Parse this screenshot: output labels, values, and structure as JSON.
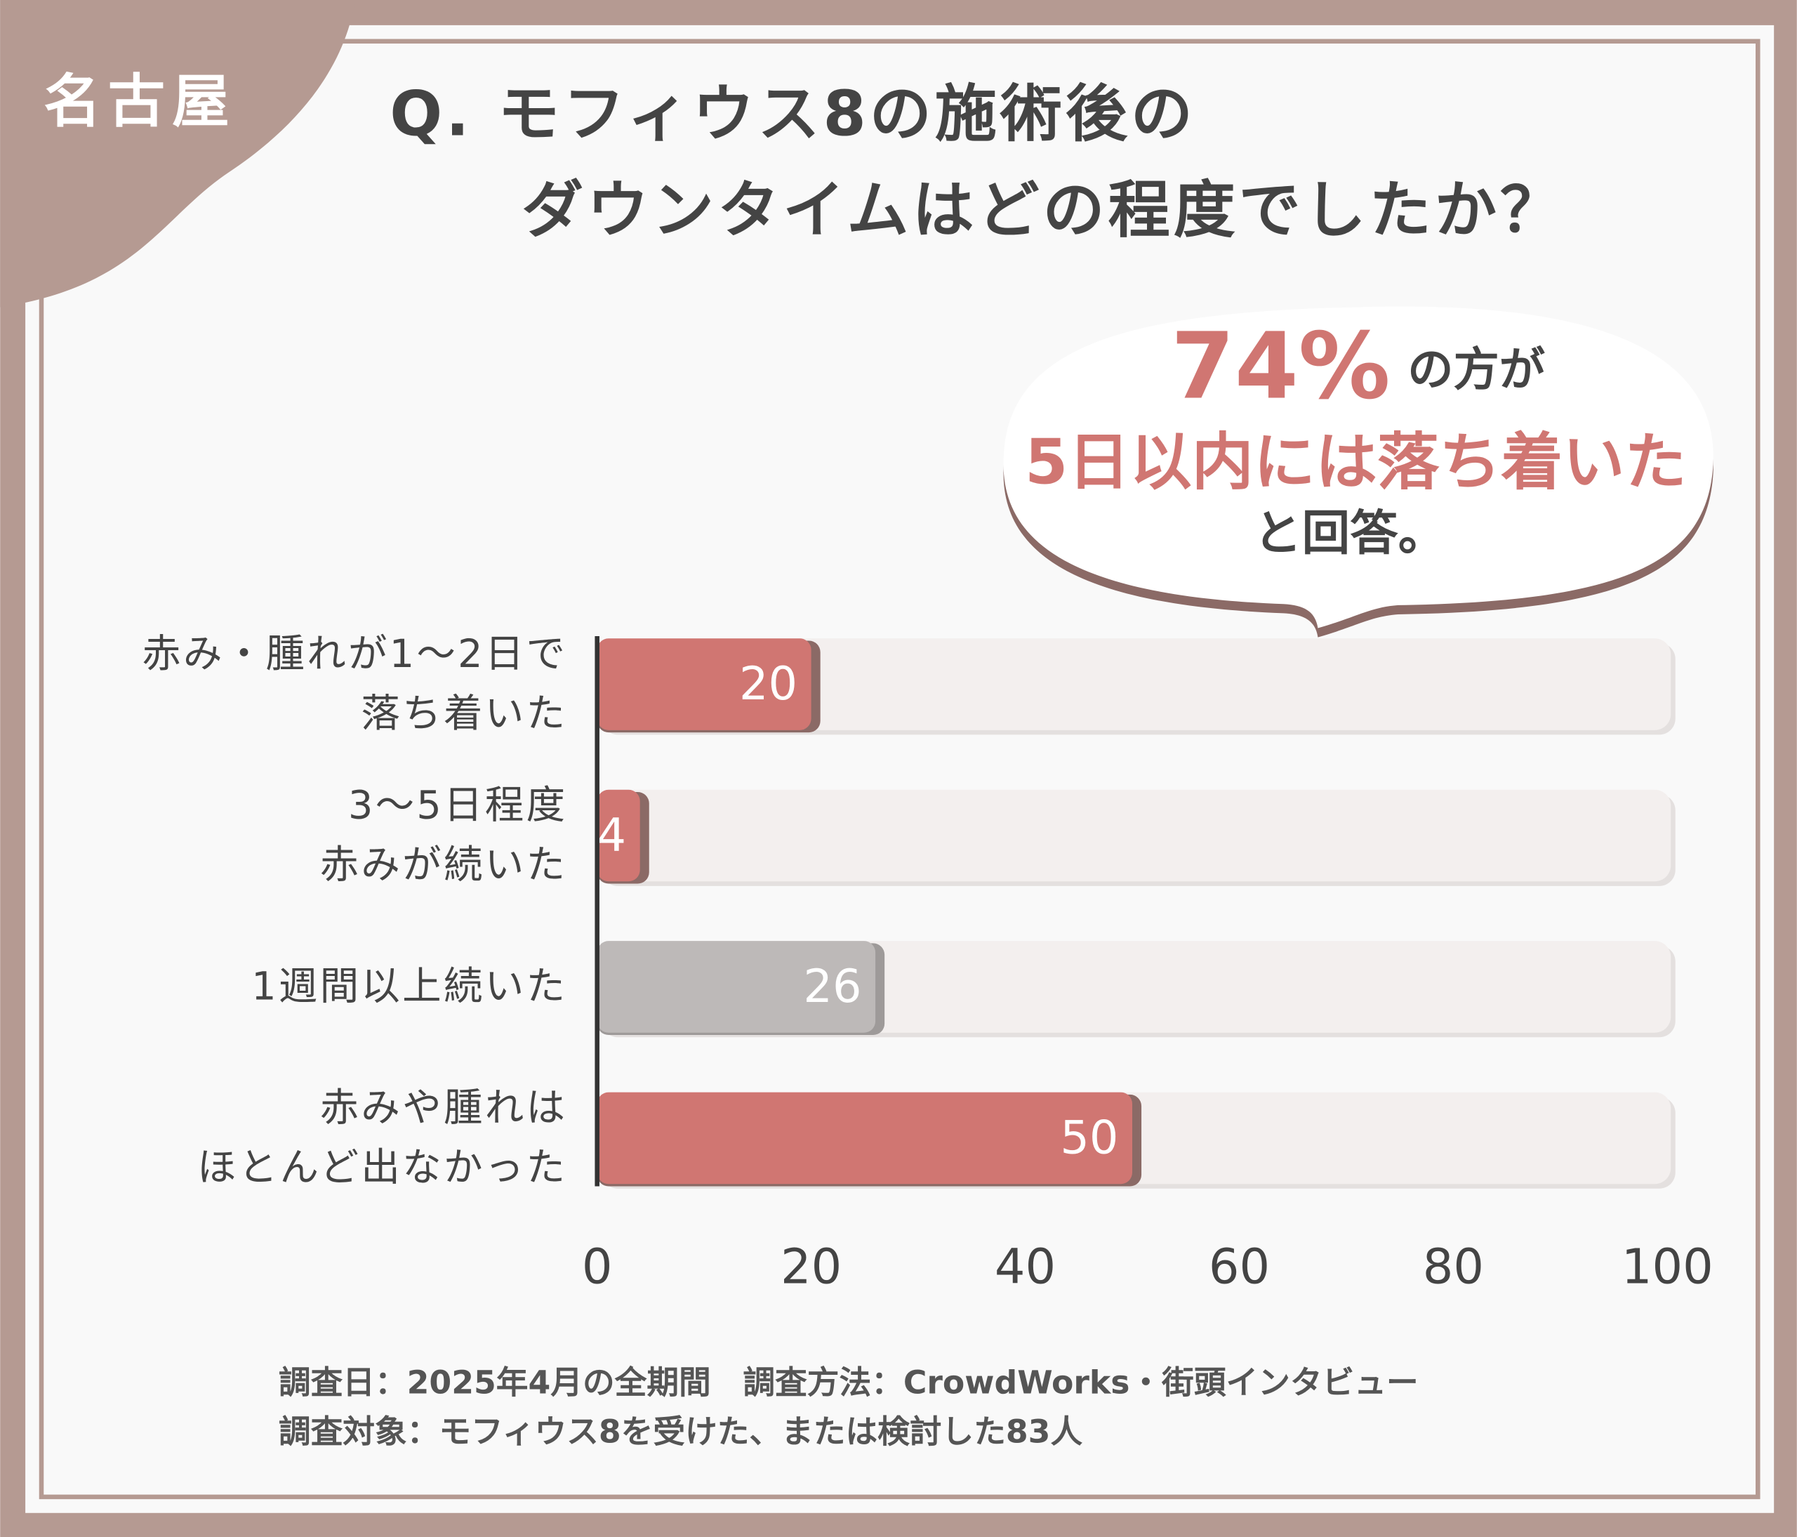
{
  "chart_data": {
    "type": "bar",
    "orientation": "horizontal",
    "badge": "名古屋",
    "title": "Q. モフィウス8の施術後の\nダウンタイムはどの程度でしたか？",
    "annotation": {
      "highlight": "74%",
      "text1": "の方が",
      "text2": "5日以内には落ち着いた",
      "text3": "と回答。"
    },
    "categories": [
      "赤み・腫れが1〜2日で\n落ち着いた",
      "3〜5日程度\n赤みが続いた",
      "1週間以上続いた",
      "赤みや腫れは\nほとんど出なかった"
    ],
    "values": [
      20,
      4,
      26,
      50
    ],
    "colors": [
      "#d07672",
      "#d07672",
      "#bdb9b8",
      "#d07672"
    ],
    "xlim": [
      0,
      100
    ],
    "xticks": [
      0,
      20,
      40,
      60,
      80,
      100
    ],
    "footer": [
      "調査日：2025年4月の全期間　調査方法：CrowdWorks・街頭インタビュー",
      "調査対象：モフィウス8を受けた、または検討した83人"
    ]
  }
}
